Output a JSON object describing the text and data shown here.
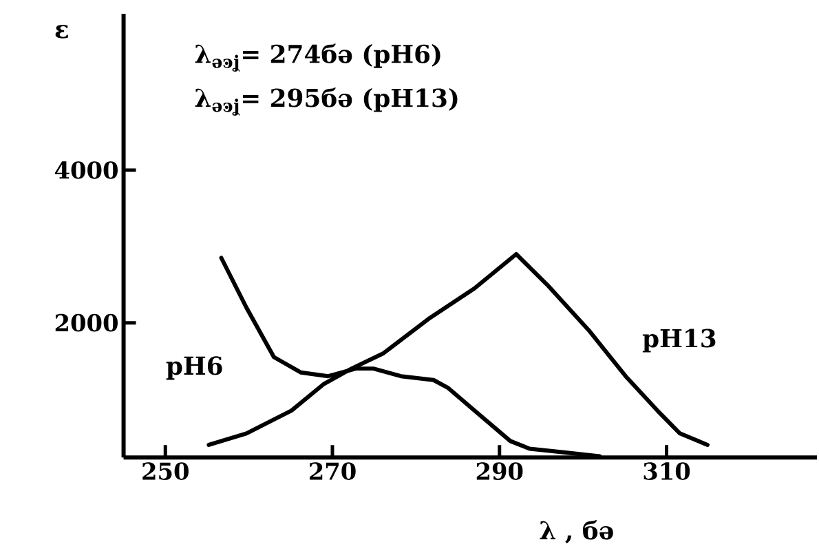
{
  "chart_data": {
    "type": "line",
    "xlabel": "λ , бə",
    "ylabel": "ε",
    "annotations": [
      "λ$_{əͽʝ}$= 274бə  (pH6)",
      "λ$_{əͽʝ}$= 295бə  (pH13)"
    ],
    "xlim": [
      245,
      328
    ],
    "ylim": [
      234,
      6050
    ],
    "xticks": [
      250,
      270,
      290,
      310
    ],
    "yticks": [
      2000,
      4000
    ],
    "grid": false,
    "marker": "none",
    "line_style": "solid",
    "series": [
      {
        "name": "pH6",
        "color": "#000000",
        "x": [
          256.7,
          259.7,
          263.0,
          266.2,
          269.5,
          272.8,
          274.9,
          278.2,
          282.1,
          283.8,
          287.0,
          291.3,
          293.6,
          297.9,
          302.0
        ],
        "values": [
          2850,
          2200,
          1550,
          1350,
          1300,
          1400,
          1400,
          1300,
          1250,
          1150,
          850,
          450,
          350,
          300,
          250
        ]
      },
      {
        "name": "pH13",
        "color": "#000000",
        "x": [
          255.2,
          259.7,
          265.1,
          269.0,
          272.3,
          276.1,
          281.5,
          287.0,
          292.0,
          295.7,
          300.7,
          305.1,
          308.9,
          311.6,
          314.9
        ],
        "values": [
          400,
          550,
          850,
          1200,
          1400,
          1600,
          2050,
          2450,
          2900,
          2500,
          1900,
          1300,
          850,
          550,
          400
        ]
      }
    ]
  }
}
